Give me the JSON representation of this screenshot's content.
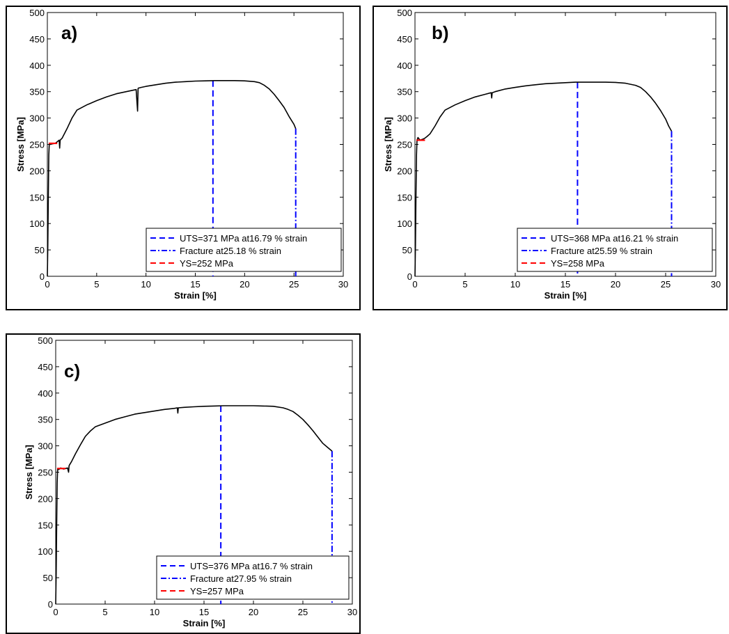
{
  "chart_data": [
    {
      "type": "line",
      "panel_label": "a)",
      "xlabel": "Strain [%]",
      "ylabel": "Stress [MPa]",
      "xlim": [
        0,
        30
      ],
      "ylim": [
        0,
        500
      ],
      "x_ticks": [
        0,
        5,
        10,
        15,
        20,
        25,
        30
      ],
      "y_ticks": [
        0,
        50,
        100,
        150,
        200,
        250,
        300,
        350,
        400,
        450,
        500
      ],
      "grid": false,
      "legend_position": "bottom-right",
      "series": [
        {
          "x": [
            0,
            0.05,
            0.1,
            0.15,
            0.2,
            0.3,
            0.5,
            0.8,
            1.0,
            1.2,
            1.25,
            1.3,
            1.5,
            2.0,
            2.5,
            3.0,
            3.5,
            4.0,
            5.0,
            6.0,
            7.0,
            8.0,
            9.0,
            9.15,
            9.2,
            9.25,
            9.3,
            9.5,
            10,
            11,
            12,
            13,
            14,
            15,
            16,
            17,
            18,
            19,
            20,
            21,
            21.5,
            22,
            22.5,
            23,
            23.5,
            24,
            24.5,
            25,
            25.18
          ],
          "y": [
            0,
            60,
            150,
            230,
            252,
            250,
            251,
            252,
            255,
            258,
            243,
            258,
            262,
            280,
            300,
            315,
            320,
            325,
            333,
            340,
            346,
            350,
            354,
            313,
            356,
            357,
            357,
            358,
            360,
            363,
            366,
            368,
            369,
            370,
            370.5,
            371,
            371,
            371,
            370.5,
            369,
            367,
            362,
            355,
            345,
            333,
            320,
            303,
            288,
            280
          ]
        }
      ],
      "yield_segment": {
        "x": [
          0.15,
          1.0
        ],
        "y": [
          252,
          252
        ]
      },
      "uts_line_x": 16.79,
      "uts_line_y": 371,
      "fracture_line_x": 25.18,
      "fracture_line_y": 280,
      "legend": [
        "UTS=371 MPa at16.79 % strain",
        "Fracture at25.18 % strain",
        "YS=252 MPa"
      ]
    },
    {
      "type": "line",
      "panel_label": "b)",
      "xlabel": "Strain [%]",
      "ylabel": "Stress [MPa]",
      "xlim": [
        0,
        30
      ],
      "ylim": [
        0,
        500
      ],
      "x_ticks": [
        0,
        5,
        10,
        15,
        20,
        25,
        30
      ],
      "y_ticks": [
        0,
        50,
        100,
        150,
        200,
        250,
        300,
        350,
        400,
        450,
        500
      ],
      "grid": false,
      "legend_position": "bottom-right",
      "series": [
        {
          "x": [
            0,
            0.05,
            0.1,
            0.15,
            0.2,
            0.3,
            0.5,
            0.8,
            1.0,
            1.2,
            1.5,
            2.0,
            2.5,
            3.0,
            3.5,
            4.0,
            5.0,
            6.0,
            7.0,
            7.6,
            7.65,
            7.7,
            8.0,
            9.0,
            10,
            11,
            12,
            13,
            14,
            15,
            16,
            17,
            18,
            19,
            20,
            21,
            22,
            22.5,
            23,
            23.5,
            24,
            24.5,
            25,
            25.3,
            25.59
          ],
          "y": [
            0,
            60,
            150,
            230,
            258,
            263,
            258,
            260,
            262,
            265,
            270,
            285,
            302,
            315,
            320,
            325,
            333,
            340,
            345,
            348,
            338,
            348,
            350,
            355,
            358,
            361,
            363,
            365,
            366,
            367,
            368,
            368,
            368,
            368,
            367.5,
            366,
            362,
            358,
            350,
            340,
            328,
            314,
            298,
            285,
            275
          ]
        }
      ],
      "yield_segment": {
        "x": [
          0.15,
          1.0
        ],
        "y": [
          258,
          258
        ]
      },
      "uts_line_x": 16.21,
      "uts_line_y": 368,
      "fracture_line_x": 25.59,
      "fracture_line_y": 275,
      "legend": [
        "UTS=368 MPa at16.21 % strain",
        "Fracture at25.59 % strain",
        "YS=258 MPa"
      ]
    },
    {
      "type": "line",
      "panel_label": "c)",
      "xlabel": "Strain [%]",
      "ylabel": "Stress [MPa]",
      "xlim": [
        0,
        30
      ],
      "ylim": [
        0,
        500
      ],
      "x_ticks": [
        0,
        5,
        10,
        15,
        20,
        25,
        30
      ],
      "y_ticks": [
        0,
        50,
        100,
        150,
        200,
        250,
        300,
        350,
        400,
        450,
        500
      ],
      "grid": false,
      "legend_position": "bottom-right",
      "series": [
        {
          "x": [
            0,
            0.05,
            0.1,
            0.15,
            0.2,
            0.3,
            0.5,
            0.8,
            1.0,
            1.2,
            1.3,
            1.35,
            1.4,
            1.6,
            2.0,
            2.5,
            3.0,
            3.5,
            4.0,
            5.0,
            6.0,
            7.0,
            8.0,
            9.0,
            10,
            11,
            12,
            12.3,
            12.35,
            12.4,
            13,
            14,
            15,
            16,
            17,
            18,
            19,
            20,
            21,
            22,
            23,
            23.5,
            24,
            24.5,
            25,
            25.5,
            26,
            26.5,
            27,
            27.5,
            27.95
          ],
          "y": [
            0,
            60,
            150,
            230,
            257,
            255,
            258,
            256,
            257,
            258,
            250,
            262,
            264,
            270,
            285,
            302,
            318,
            328,
            336,
            343,
            350,
            355,
            360,
            363,
            366,
            369,
            371,
            372,
            362,
            372,
            373,
            374,
            375,
            375.5,
            376,
            376,
            376,
            376,
            375.5,
            375,
            372,
            369,
            365,
            358,
            350,
            340,
            329,
            317,
            305,
            297,
            290
          ]
        }
      ],
      "yield_segment": {
        "x": [
          0.15,
          1.0
        ],
        "y": [
          257,
          257
        ]
      },
      "uts_line_x": 16.7,
      "uts_line_y": 376,
      "fracture_line_x": 27.95,
      "fracture_line_y": 290,
      "legend": [
        "UTS=376 MPa at16.7 % strain",
        "Fracture at27.95 % strain",
        "YS=257 MPa"
      ]
    }
  ]
}
